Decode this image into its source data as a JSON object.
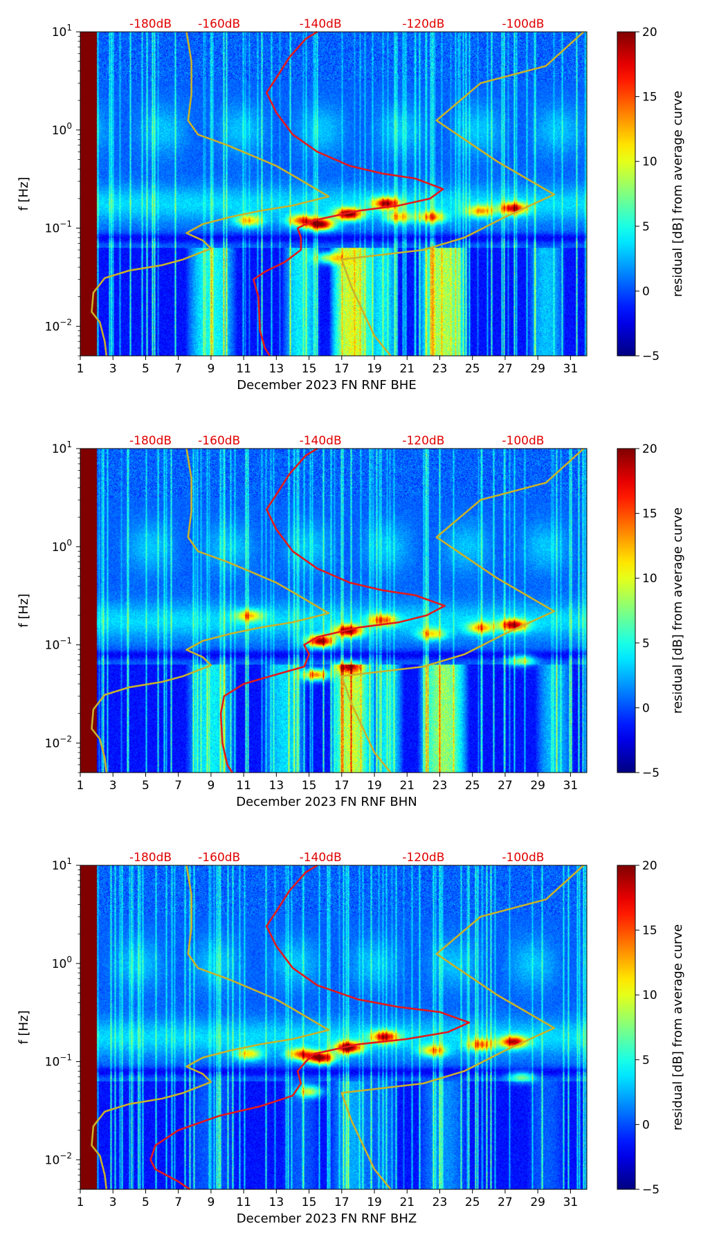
{
  "colorbar": {
    "label": "residual [dB] from average curve",
    "ticks": [
      20,
      15,
      10,
      5,
      0,
      -5
    ],
    "tick_labels": [
      "20",
      "15",
      "10",
      "5",
      "0",
      "−5"
    ],
    "range": [
      -5,
      20
    ]
  },
  "colors": {
    "high_res_curve": "#c9b22a",
    "average_curve": "#e31a1c",
    "db_label": "#e00000",
    "background_low": "#00007f"
  },
  "chart_data": [
    {
      "type": "heatmap",
      "title": "",
      "xlabel": "December 2023 FN RNF  BHE",
      "ylabel": "f [Hz]",
      "x_ticks": [
        1,
        3,
        5,
        7,
        9,
        11,
        13,
        15,
        17,
        19,
        21,
        23,
        25,
        27,
        29,
        31
      ],
      "x_tick_labels": [
        "1",
        "3",
        "5",
        "7",
        "9",
        "11",
        "13",
        "15",
        "17",
        "19",
        "21",
        "23",
        "25",
        "27",
        "29",
        "31"
      ],
      "xlim": [
        1,
        32
      ],
      "y_scale": "log",
      "ylim": [
        0.005,
        10
      ],
      "y_ticks": [
        10,
        1,
        0.1,
        0.01
      ],
      "y_tick_labels": [
        {
          "base": "10",
          "exp": "1"
        },
        {
          "base": "10",
          "exp": "0"
        },
        {
          "base": "10",
          "exp": "−1"
        },
        {
          "base": "10",
          "exp": "−2"
        }
      ],
      "top_labels": [
        {
          "x": 5.3,
          "text": "-180dB"
        },
        {
          "x": 9.5,
          "text": "-160dB"
        },
        {
          "x": 15.7,
          "text": "-140dB"
        },
        {
          "x": 22.0,
          "text": "-120dB"
        },
        {
          "x": 28.1,
          "text": "-100dB"
        }
      ],
      "hotspots": [
        {
          "x": 15.7,
          "y": 0.11,
          "int": 1.0
        },
        {
          "x": 17.4,
          "y": 0.14,
          "int": 1.0
        },
        {
          "x": 19.7,
          "y": 0.18,
          "int": 0.85
        },
        {
          "x": 14.5,
          "y": 0.12,
          "int": 0.7
        },
        {
          "x": 27.5,
          "y": 0.16,
          "int": 0.8
        },
        {
          "x": 22.5,
          "y": 0.13,
          "int": 0.6
        },
        {
          "x": 25.5,
          "y": 0.15,
          "int": 0.55
        },
        {
          "x": 11.3,
          "y": 0.12,
          "int": 0.55
        },
        {
          "x": 16.2,
          "y": 0.05,
          "int": 0.55
        },
        {
          "x": 20.5,
          "y": 0.13,
          "int": 0.5
        }
      ],
      "bands": [
        {
          "x": 17.6,
          "w": 1.4,
          "int": 0.9
        },
        {
          "x": 23.2,
          "w": 1.6,
          "int": 0.8
        },
        {
          "x": 9.0,
          "w": 1.6,
          "int": 0.5
        },
        {
          "x": 14.5,
          "w": 1.2,
          "int": 0.45
        },
        {
          "x": 19.5,
          "w": 1.0,
          "int": 0.45
        },
        {
          "x": 29.5,
          "w": 1.2,
          "int": 0.35
        }
      ],
      "curve_yellow_left": [
        [
          2.6,
          0.005
        ],
        [
          2.5,
          0.007
        ],
        [
          2.2,
          0.011
        ],
        [
          1.7,
          0.014
        ],
        [
          1.8,
          0.022
        ],
        [
          2.5,
          0.031
        ],
        [
          4.0,
          0.037
        ],
        [
          6.0,
          0.042
        ],
        [
          7.3,
          0.048
        ],
        [
          9.0,
          0.062
        ],
        [
          8.5,
          0.075
        ],
        [
          7.5,
          0.089
        ],
        [
          8.5,
          0.11
        ],
        [
          10.2,
          0.13
        ],
        [
          12.0,
          0.15
        ],
        [
          14.0,
          0.17
        ],
        [
          16.2,
          0.21
        ],
        [
          14.2,
          0.33
        ],
        [
          13.0,
          0.43
        ],
        [
          11.5,
          0.55
        ],
        [
          10.0,
          0.7
        ],
        [
          8.2,
          0.9
        ],
        [
          7.6,
          1.25
        ],
        [
          7.8,
          2.3
        ],
        [
          7.8,
          5.0
        ],
        [
          7.5,
          10.0
        ]
      ],
      "curve_yellow_right": [
        [
          20.0,
          0.005
        ],
        [
          19.0,
          0.008
        ],
        [
          17.6,
          0.025
        ],
        [
          17.0,
          0.048
        ],
        [
          22.0,
          0.06
        ],
        [
          24.5,
          0.08
        ],
        [
          27.0,
          0.13
        ],
        [
          30.0,
          0.22
        ],
        [
          26.5,
          0.48
        ],
        [
          22.8,
          1.25
        ],
        [
          25.5,
          3.0
        ],
        [
          29.5,
          4.5
        ],
        [
          31.8,
          10.0
        ]
      ],
      "curve_red": [
        [
          12.6,
          0.005
        ],
        [
          12.3,
          0.006
        ],
        [
          12.0,
          0.009
        ],
        [
          11.9,
          0.02
        ],
        [
          11.6,
          0.03
        ],
        [
          12.3,
          0.036
        ],
        [
          13.5,
          0.045
        ],
        [
          14.5,
          0.06
        ],
        [
          14.5,
          0.08
        ],
        [
          14.3,
          0.1
        ],
        [
          15.3,
          0.12
        ],
        [
          18.0,
          0.15
        ],
        [
          20.5,
          0.17
        ],
        [
          22.4,
          0.2
        ],
        [
          23.2,
          0.25
        ],
        [
          21.5,
          0.32
        ],
        [
          19.5,
          0.36
        ],
        [
          17.5,
          0.43
        ],
        [
          15.5,
          0.6
        ],
        [
          14.0,
          0.9
        ],
        [
          13.0,
          1.5
        ],
        [
          12.4,
          2.4
        ],
        [
          13.0,
          3.4
        ],
        [
          13.8,
          5.5
        ],
        [
          14.8,
          8.5
        ],
        [
          15.5,
          10.0
        ]
      ]
    },
    {
      "type": "heatmap",
      "title": "",
      "xlabel": "December 2023 FN RNF  BHN",
      "ylabel": "f [Hz]",
      "x_ticks": [
        1,
        3,
        5,
        7,
        9,
        11,
        13,
        15,
        17,
        19,
        21,
        23,
        25,
        27,
        29,
        31
      ],
      "x_tick_labels": [
        "1",
        "3",
        "5",
        "7",
        "9",
        "11",
        "13",
        "15",
        "17",
        "19",
        "21",
        "23",
        "25",
        "27",
        "29",
        "31"
      ],
      "xlim": [
        1,
        32
      ],
      "y_scale": "log",
      "ylim": [
        0.005,
        10
      ],
      "y_ticks": [
        10,
        1,
        0.1,
        0.01
      ],
      "y_tick_labels": [
        {
          "base": "10",
          "exp": "1"
        },
        {
          "base": "10",
          "exp": "0"
        },
        {
          "base": "10",
          "exp": "−1"
        },
        {
          "base": "10",
          "exp": "−2"
        }
      ],
      "top_labels": [
        {
          "x": 5.3,
          "text": "-180dB"
        },
        {
          "x": 9.5,
          "text": "-160dB"
        },
        {
          "x": 15.7,
          "text": "-140dB"
        },
        {
          "x": 22.0,
          "text": "-120dB"
        },
        {
          "x": 28.1,
          "text": "-100dB"
        }
      ],
      "hotspots": [
        {
          "x": 15.7,
          "y": 0.11,
          "int": 1.0
        },
        {
          "x": 17.4,
          "y": 0.14,
          "int": 0.95
        },
        {
          "x": 19.5,
          "y": 0.18,
          "int": 0.6
        },
        {
          "x": 15.4,
          "y": 0.05,
          "int": 0.8
        },
        {
          "x": 27.5,
          "y": 0.16,
          "int": 0.85
        },
        {
          "x": 22.5,
          "y": 0.13,
          "int": 0.5
        },
        {
          "x": 25.5,
          "y": 0.15,
          "int": 0.55
        },
        {
          "x": 11.3,
          "y": 0.2,
          "int": 0.5
        },
        {
          "x": 28.0,
          "y": 0.07,
          "int": 0.45
        },
        {
          "x": 17.4,
          "y": 0.06,
          "int": 0.55
        }
      ],
      "bands": [
        {
          "x": 17.6,
          "w": 1.4,
          "int": 0.85
        },
        {
          "x": 23.2,
          "w": 1.6,
          "int": 0.75
        },
        {
          "x": 9.0,
          "w": 1.6,
          "int": 0.45
        },
        {
          "x": 13.5,
          "w": 1.4,
          "int": 0.4
        },
        {
          "x": 19.8,
          "w": 1.0,
          "int": 0.45
        },
        {
          "x": 30.0,
          "w": 1.2,
          "int": 0.35
        }
      ],
      "curve_yellow_left": [
        [
          2.6,
          0.005
        ],
        [
          2.5,
          0.007
        ],
        [
          2.2,
          0.011
        ],
        [
          1.7,
          0.014
        ],
        [
          1.8,
          0.022
        ],
        [
          2.5,
          0.031
        ],
        [
          4.0,
          0.037
        ],
        [
          6.0,
          0.042
        ],
        [
          7.3,
          0.048
        ],
        [
          9.0,
          0.062
        ],
        [
          8.5,
          0.075
        ],
        [
          7.5,
          0.089
        ],
        [
          8.5,
          0.11
        ],
        [
          10.2,
          0.13
        ],
        [
          12.0,
          0.15
        ],
        [
          14.0,
          0.17
        ],
        [
          16.2,
          0.21
        ],
        [
          14.2,
          0.33
        ],
        [
          13.0,
          0.43
        ],
        [
          11.5,
          0.55
        ],
        [
          10.0,
          0.7
        ],
        [
          8.2,
          0.9
        ],
        [
          7.6,
          1.25
        ],
        [
          7.8,
          2.3
        ],
        [
          7.8,
          5.0
        ],
        [
          7.5,
          10.0
        ]
      ],
      "curve_yellow_right": [
        [
          20.0,
          0.005
        ],
        [
          19.0,
          0.008
        ],
        [
          17.6,
          0.025
        ],
        [
          17.0,
          0.048
        ],
        [
          22.0,
          0.06
        ],
        [
          24.5,
          0.08
        ],
        [
          27.0,
          0.13
        ],
        [
          30.0,
          0.22
        ],
        [
          26.5,
          0.48
        ],
        [
          22.8,
          1.25
        ],
        [
          25.5,
          3.0
        ],
        [
          29.5,
          4.5
        ],
        [
          31.8,
          10.0
        ]
      ],
      "curve_red": [
        [
          10.3,
          0.005
        ],
        [
          10.0,
          0.006
        ],
        [
          9.7,
          0.01
        ],
        [
          9.6,
          0.02
        ],
        [
          9.8,
          0.03
        ],
        [
          11.0,
          0.04
        ],
        [
          13.0,
          0.05
        ],
        [
          14.7,
          0.06
        ],
        [
          15.0,
          0.08
        ],
        [
          14.7,
          0.1
        ],
        [
          15.5,
          0.12
        ],
        [
          18.0,
          0.15
        ],
        [
          20.5,
          0.17
        ],
        [
          22.2,
          0.2
        ],
        [
          23.3,
          0.25
        ],
        [
          21.5,
          0.32
        ],
        [
          19.5,
          0.36
        ],
        [
          17.5,
          0.43
        ],
        [
          15.5,
          0.6
        ],
        [
          14.0,
          0.9
        ],
        [
          13.0,
          1.5
        ],
        [
          12.4,
          2.4
        ],
        [
          13.0,
          3.4
        ],
        [
          13.8,
          5.5
        ],
        [
          14.8,
          8.5
        ],
        [
          15.5,
          10.0
        ]
      ]
    },
    {
      "type": "heatmap",
      "title": "",
      "xlabel": "December 2023 FN RNF  BHZ",
      "ylabel": "f [Hz]",
      "x_ticks": [
        1,
        3,
        5,
        7,
        9,
        11,
        13,
        15,
        17,
        19,
        21,
        23,
        25,
        27,
        29,
        31
      ],
      "x_tick_labels": [
        "1",
        "3",
        "5",
        "7",
        "9",
        "11",
        "13",
        "15",
        "17",
        "19",
        "21",
        "23",
        "25",
        "27",
        "29",
        "31"
      ],
      "xlim": [
        1,
        32
      ],
      "y_scale": "log",
      "ylim": [
        0.005,
        10
      ],
      "y_ticks": [
        10,
        1,
        0.1,
        0.01
      ],
      "y_tick_labels": [
        {
          "base": "10",
          "exp": "1"
        },
        {
          "base": "10",
          "exp": "0"
        },
        {
          "base": "10",
          "exp": "−1"
        },
        {
          "base": "10",
          "exp": "−2"
        }
      ],
      "top_labels": [
        {
          "x": 5.3,
          "text": "-180dB"
        },
        {
          "x": 9.5,
          "text": "-160dB"
        },
        {
          "x": 15.7,
          "text": "-140dB"
        },
        {
          "x": 22.0,
          "text": "-120dB"
        },
        {
          "x": 28.1,
          "text": "-100dB"
        }
      ],
      "hotspots": [
        {
          "x": 15.7,
          "y": 0.11,
          "int": 1.0
        },
        {
          "x": 17.4,
          "y": 0.14,
          "int": 1.0
        },
        {
          "x": 19.6,
          "y": 0.18,
          "int": 0.8
        },
        {
          "x": 14.5,
          "y": 0.12,
          "int": 0.7
        },
        {
          "x": 27.5,
          "y": 0.16,
          "int": 0.85
        },
        {
          "x": 22.6,
          "y": 0.13,
          "int": 0.55
        },
        {
          "x": 25.5,
          "y": 0.15,
          "int": 0.55
        },
        {
          "x": 11.3,
          "y": 0.12,
          "int": 0.5
        },
        {
          "x": 15.0,
          "y": 0.05,
          "int": 0.5
        },
        {
          "x": 28.0,
          "y": 0.07,
          "int": 0.4
        }
      ],
      "bands": [
        {
          "x": 17.6,
          "w": 1.4,
          "int": 0.3
        },
        {
          "x": 23.2,
          "w": 1.6,
          "int": 0.25
        },
        {
          "x": 9.0,
          "w": 1.6,
          "int": 0.15
        },
        {
          "x": 14.5,
          "w": 1.2,
          "int": 0.15
        },
        {
          "x": 19.5,
          "w": 1.0,
          "int": 0.2
        },
        {
          "x": 29.5,
          "w": 1.2,
          "int": 0.15
        }
      ],
      "curve_yellow_left": [
        [
          2.6,
          0.005
        ],
        [
          2.5,
          0.007
        ],
        [
          2.2,
          0.011
        ],
        [
          1.7,
          0.014
        ],
        [
          1.8,
          0.022
        ],
        [
          2.5,
          0.031
        ],
        [
          4.0,
          0.037
        ],
        [
          6.0,
          0.042
        ],
        [
          7.3,
          0.048
        ],
        [
          9.0,
          0.062
        ],
        [
          8.5,
          0.075
        ],
        [
          7.5,
          0.089
        ],
        [
          8.5,
          0.11
        ],
        [
          10.2,
          0.13
        ],
        [
          12.0,
          0.15
        ],
        [
          14.0,
          0.17
        ],
        [
          16.2,
          0.21
        ],
        [
          14.2,
          0.33
        ],
        [
          13.0,
          0.43
        ],
        [
          11.5,
          0.55
        ],
        [
          10.0,
          0.7
        ],
        [
          8.2,
          0.9
        ],
        [
          7.6,
          1.25
        ],
        [
          7.8,
          2.3
        ],
        [
          7.8,
          5.0
        ],
        [
          7.5,
          10.0
        ]
      ],
      "curve_yellow_right": [
        [
          20.0,
          0.005
        ],
        [
          19.0,
          0.008
        ],
        [
          17.6,
          0.025
        ],
        [
          17.0,
          0.048
        ],
        [
          22.0,
          0.06
        ],
        [
          24.5,
          0.08
        ],
        [
          27.0,
          0.13
        ],
        [
          30.0,
          0.22
        ],
        [
          26.5,
          0.48
        ],
        [
          22.8,
          1.25
        ],
        [
          25.5,
          3.0
        ],
        [
          29.5,
          4.5
        ],
        [
          31.8,
          10.0
        ]
      ],
      "curve_red": [
        [
          7.7,
          0.005
        ],
        [
          7.0,
          0.006
        ],
        [
          5.6,
          0.008
        ],
        [
          5.3,
          0.01
        ],
        [
          5.6,
          0.014
        ],
        [
          7.0,
          0.02
        ],
        [
          9.5,
          0.028
        ],
        [
          12.0,
          0.035
        ],
        [
          14.0,
          0.045
        ],
        [
          14.5,
          0.06
        ],
        [
          14.3,
          0.08
        ],
        [
          14.8,
          0.1
        ],
        [
          15.3,
          0.12
        ],
        [
          18.0,
          0.15
        ],
        [
          21.0,
          0.17
        ],
        [
          23.5,
          0.2
        ],
        [
          24.8,
          0.25
        ],
        [
          23.0,
          0.32
        ],
        [
          20.5,
          0.36
        ],
        [
          18.0,
          0.43
        ],
        [
          15.5,
          0.6
        ],
        [
          14.0,
          0.9
        ],
        [
          13.0,
          1.5
        ],
        [
          12.4,
          2.4
        ],
        [
          13.0,
          3.4
        ],
        [
          13.8,
          5.5
        ],
        [
          14.8,
          8.5
        ],
        [
          15.5,
          10.0
        ]
      ]
    }
  ]
}
